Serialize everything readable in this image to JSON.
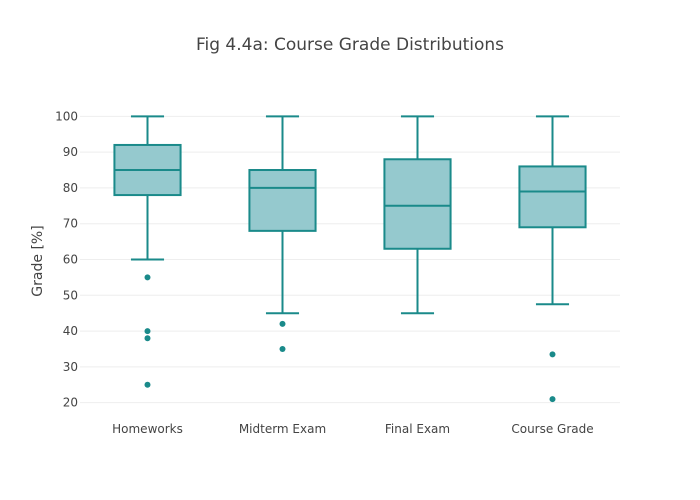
{
  "chart_data": {
    "type": "box",
    "title": "Fig 4.4a: Course Grade Distributions",
    "xlabel": "",
    "ylabel": "Grade [%]",
    "ylim": [
      16,
      104
    ],
    "yticks": [
      20,
      30,
      40,
      50,
      60,
      70,
      80,
      90,
      100
    ],
    "grid": true,
    "legend": false,
    "colors": {
      "stroke": "#1a8a8a",
      "fill": "#8fc6cb",
      "outlier": "#1a8a8a",
      "grid": "#eeeeee"
    },
    "categories": [
      "Homeworks",
      "Midterm Exam",
      "Final Exam",
      "Course Grade"
    ],
    "boxes": [
      {
        "category": "Homeworks",
        "whisker_low": 60,
        "q1": 78,
        "median": 85,
        "q3": 92,
        "whisker_high": 100,
        "outliers": [
          55,
          40,
          38,
          25
        ]
      },
      {
        "category": "Midterm Exam",
        "whisker_low": 45,
        "q1": 68,
        "median": 80,
        "q3": 85,
        "whisker_high": 100,
        "outliers": [
          42,
          35
        ]
      },
      {
        "category": "Final Exam",
        "whisker_low": 45,
        "q1": 63,
        "median": 75,
        "q3": 88,
        "whisker_high": 100,
        "outliers": []
      },
      {
        "category": "Course Grade",
        "whisker_low": 47.5,
        "q1": 69,
        "median": 79,
        "q3": 86,
        "whisker_high": 100,
        "outliers": [
          33.5,
          21
        ]
      }
    ]
  }
}
